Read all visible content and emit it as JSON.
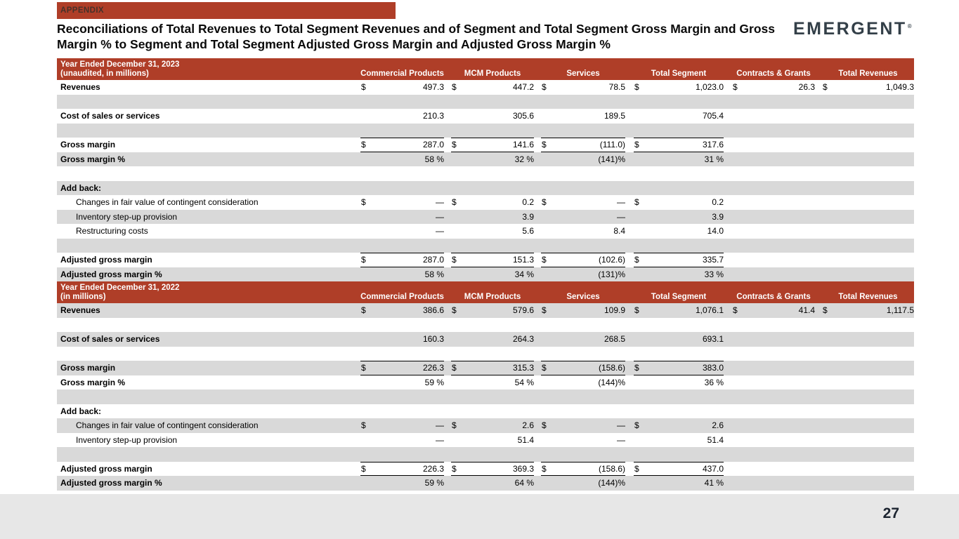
{
  "appendix_label": "APPENDIX",
  "title": "Reconciliations of Total Revenues to Total Segment Revenues and of Segment and Total Segment Gross Margin and Gross Margin % to Segment and Total Segment Adjusted Gross Margin and Adjusted Gross Margin %",
  "logo": {
    "text": "EMERGENT",
    "registered": "®"
  },
  "page_number": "27",
  "colors": {
    "accent_red": "#AF3E28",
    "row_gray": "#D9D9D9",
    "footer_gray": "#E7E7E7",
    "logo_color": "#333F48",
    "appendix_text": "#46312A"
  },
  "tables": [
    {
      "name": "year-ended-2023",
      "header": {
        "label_line1": "Year Ended December 31, 2023",
        "label_line2": "(unaudited, in millions)",
        "columns": [
          "Commercial Products",
          "MCM Products",
          "Services",
          "Total Segment",
          "Contracts & Grants",
          "Total Revenues"
        ]
      },
      "rows": [
        {
          "label": "Revenues",
          "bold": true,
          "shade": "white",
          "cells": [
            [
              "$",
              "497.3"
            ],
            [
              "$",
              "447.2"
            ],
            [
              "$",
              "78.5"
            ],
            [
              "$",
              "1,023.0"
            ],
            [
              "$",
              "26.3"
            ],
            [
              "$",
              "1,049.3"
            ]
          ]
        },
        {
          "spacer": true,
          "shade": "gray"
        },
        {
          "label": "Cost of sales or services",
          "bold": true,
          "shade": "white",
          "cells": [
            [
              "",
              "210.3"
            ],
            [
              "",
              "305.6"
            ],
            [
              "",
              "189.5"
            ],
            [
              "",
              "705.4"
            ],
            null,
            null
          ]
        },
        {
          "spacer": true,
          "shade": "gray"
        },
        {
          "label": "Gross margin",
          "bold": true,
          "shade": "white",
          "rule": true,
          "cells": [
            [
              "$",
              "287.0"
            ],
            [
              "$",
              "141.6"
            ],
            [
              "$",
              "(111.0)"
            ],
            [
              "$",
              "317.6"
            ],
            null,
            null
          ]
        },
        {
          "label": "Gross margin %",
          "bold": true,
          "shade": "gray",
          "cells": [
            [
              "",
              "58 %"
            ],
            [
              "",
              "32 %"
            ],
            [
              "",
              "(141)%"
            ],
            [
              "",
              "31 %"
            ],
            null,
            null
          ]
        },
        {
          "spacer": true,
          "shade": "white"
        },
        {
          "label": "Add back:",
          "bold": true,
          "shade": "gray"
        },
        {
          "label": "Changes in fair value of contingent consideration",
          "indent": true,
          "shade": "white",
          "cells": [
            [
              "$",
              "—"
            ],
            [
              "$",
              "0.2"
            ],
            [
              "$",
              "—"
            ],
            [
              "$",
              "0.2"
            ],
            null,
            null
          ]
        },
        {
          "label": "Inventory step-up provision",
          "indent": true,
          "shade": "gray",
          "cells": [
            [
              "",
              "—"
            ],
            [
              "",
              "3.9"
            ],
            [
              "",
              "—"
            ],
            [
              "",
              "3.9"
            ],
            null,
            null
          ]
        },
        {
          "label": "Restructuring costs",
          "indent": true,
          "shade": "white",
          "cells": [
            [
              "",
              "—"
            ],
            [
              "",
              "5.6"
            ],
            [
              "",
              "8.4"
            ],
            [
              "",
              "14.0"
            ],
            null,
            null
          ]
        },
        {
          "spacer": true,
          "shade": "gray"
        },
        {
          "label": "Adjusted gross margin",
          "bold": true,
          "shade": "white",
          "rule": true,
          "cells": [
            [
              "$",
              "287.0"
            ],
            [
              "$",
              "151.3"
            ],
            [
              "$",
              "(102.6)"
            ],
            [
              "$",
              "335.7"
            ],
            null,
            null
          ]
        },
        {
          "label": "Adjusted gross margin %",
          "bold": true,
          "shade": "gray",
          "cells": [
            [
              "",
              "58 %"
            ],
            [
              "",
              "34 %"
            ],
            [
              "",
              "(131)%"
            ],
            [
              "",
              "33 %"
            ],
            null,
            null
          ]
        }
      ]
    },
    {
      "name": "year-ended-2022",
      "header": {
        "label_line1": "Year Ended December 31, 2022",
        "label_line2": "(in millions)",
        "columns": [
          "Commercial Products",
          "MCM Products",
          "Services",
          "Total Segment",
          "Contracts & Grants",
          "Total Revenues"
        ]
      },
      "rows": [
        {
          "label": "Revenues",
          "bold": true,
          "shade": "gray",
          "cells": [
            [
              "$",
              "386.6"
            ],
            [
              "$",
              "579.6"
            ],
            [
              "$",
              "109.9"
            ],
            [
              "$",
              "1,076.1"
            ],
            [
              "$",
              "41.4"
            ],
            [
              "$",
              "1,117.5"
            ]
          ]
        },
        {
          "spacer": true,
          "shade": "white"
        },
        {
          "label": "Cost of sales or services",
          "bold": true,
          "shade": "gray",
          "cells": [
            [
              "",
              "160.3"
            ],
            [
              "",
              "264.3"
            ],
            [
              "",
              "268.5"
            ],
            [
              "",
              "693.1"
            ],
            null,
            null
          ]
        },
        {
          "spacer": true,
          "shade": "white"
        },
        {
          "label": "Gross margin",
          "bold": true,
          "shade": "gray",
          "rule": true,
          "cells": [
            [
              "$",
              "226.3"
            ],
            [
              "$",
              "315.3"
            ],
            [
              "$",
              "(158.6)"
            ],
            [
              "$",
              "383.0"
            ],
            null,
            null
          ]
        },
        {
          "label": "Gross margin %",
          "bold": true,
          "shade": "white",
          "cells": [
            [
              "",
              "59 %"
            ],
            [
              "",
              "54 %"
            ],
            [
              "",
              "(144)%"
            ],
            [
              "",
              "36 %"
            ],
            null,
            null
          ]
        },
        {
          "spacer": true,
          "shade": "gray"
        },
        {
          "label": "Add back:",
          "bold": true,
          "shade": "white"
        },
        {
          "label": "Changes in fair value of contingent consideration",
          "indent": true,
          "shade": "gray",
          "cells": [
            [
              "$",
              "—"
            ],
            [
              "$",
              "2.6"
            ],
            [
              "$",
              "—"
            ],
            [
              "$",
              "2.6"
            ],
            null,
            null
          ]
        },
        {
          "label": "Inventory step-up provision",
          "indent": true,
          "shade": "white",
          "cells": [
            [
              "",
              "—"
            ],
            [
              "",
              "51.4"
            ],
            [
              "",
              "—"
            ],
            [
              "",
              "51.4"
            ],
            null,
            null
          ]
        },
        {
          "spacer": true,
          "shade": "gray"
        },
        {
          "label": "Adjusted gross margin",
          "bold": true,
          "shade": "white",
          "rule": true,
          "cells": [
            [
              "$",
              "226.3"
            ],
            [
              "$",
              "369.3"
            ],
            [
              "$",
              "(158.6)"
            ],
            [
              "$",
              "437.0"
            ],
            null,
            null
          ]
        },
        {
          "label": "Adjusted gross margin %",
          "bold": true,
          "shade": "gray",
          "cells": [
            [
              "",
              "59 %"
            ],
            [
              "",
              "64 %"
            ],
            [
              "",
              "(144)%"
            ],
            [
              "",
              "41 %"
            ],
            null,
            null
          ]
        }
      ]
    }
  ]
}
